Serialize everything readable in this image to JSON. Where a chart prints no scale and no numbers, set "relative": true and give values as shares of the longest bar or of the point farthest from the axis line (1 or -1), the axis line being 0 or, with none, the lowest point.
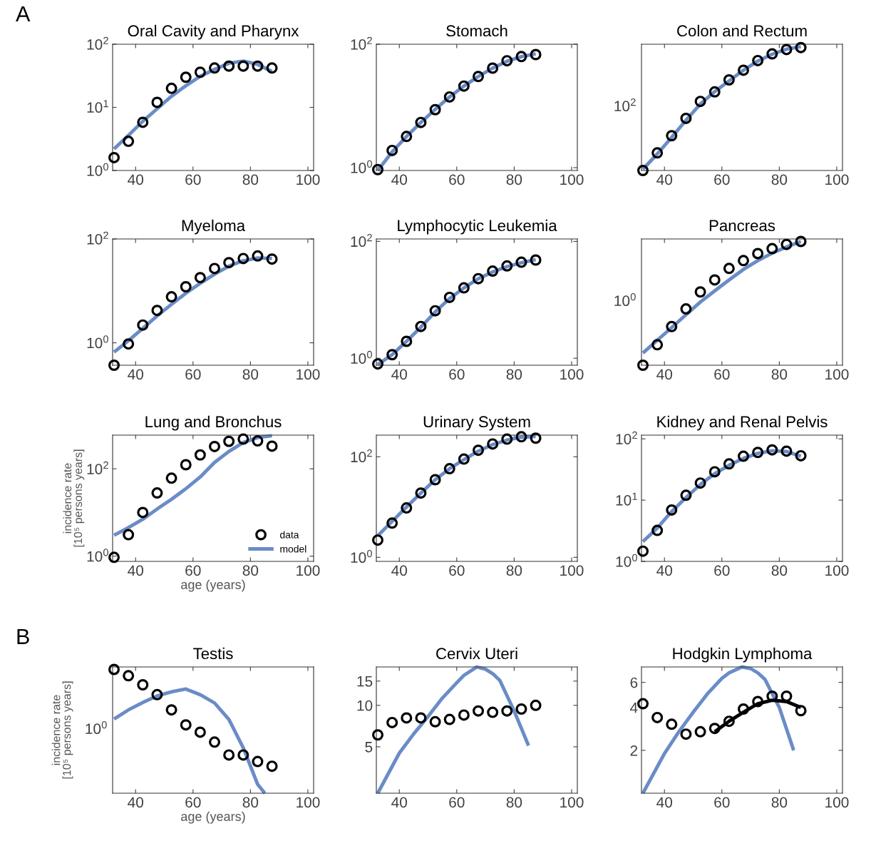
{
  "chart_data": [
    {
      "type": "scatter",
      "title": "Oral Cavity and Pharynx",
      "annotations": [
        "A"
      ],
      "x": [
        32.5,
        37.5,
        42.5,
        47.5,
        52.5,
        57.5,
        62.5,
        67.5,
        72.5,
        77.5,
        82.5,
        87.5
      ],
      "xlim": [
        32,
        102
      ],
      "xticks": [
        40,
        60,
        80,
        100
      ],
      "log": "y",
      "ylim": [
        1,
        100
      ],
      "yticks": [
        {
          "value": 1,
          "label": "10$^{0}$"
        },
        {
          "value": 10,
          "label": "10$^{1}$"
        },
        {
          "value": 100,
          "label": "10$^{2}$"
        }
      ],
      "series": [
        {
          "type": "line",
          "color": "#6a8cc7",
          "values": [
            2.2,
            3.6,
            6,
            9.5,
            15,
            22,
            31,
            40,
            50,
            54,
            48,
            37
          ]
        },
        {
          "type": "scatter",
          "marker": "circle",
          "color": "#000000",
          "values": [
            1.6,
            2.9,
            5.8,
            12,
            20,
            30,
            36,
            42,
            45,
            45,
            45,
            42
          ]
        }
      ]
    },
    {
      "type": "scatter",
      "title": "Stomach",
      "x": [
        32.5,
        37.5,
        42.5,
        47.5,
        52.5,
        57.5,
        62.5,
        67.5,
        72.5,
        77.5,
        82.5,
        87.5
      ],
      "xlim": [
        32,
        102
      ],
      "xticks": [
        40,
        60,
        80,
        100
      ],
      "log": "y",
      "ylim": [
        0.9,
        100
      ],
      "yticks": [
        {
          "value": 1,
          "label": "10$^{0}$"
        },
        {
          "value": 100,
          "label": "10$^{2}$"
        }
      ],
      "series": [
        {
          "type": "line",
          "color": "#6a8cc7",
          "values": [
            0.9,
            1.8,
            3.2,
            5.4,
            8.8,
            14,
            21,
            30,
            41,
            53,
            63,
            70
          ]
        },
        {
          "type": "scatter",
          "marker": "circle",
          "color": "#000000",
          "values": [
            0.93,
            1.9,
            3.2,
            5.4,
            8.7,
            14,
            21,
            30,
            41,
            54,
            63,
            68
          ]
        }
      ]
    },
    {
      "type": "scatter",
      "title": "Colon and Rectum",
      "relative": true,
      "annotations": [
        "10$^{2}$"
      ],
      "x": [
        32.5,
        37.5,
        42.5,
        47.5,
        52.5,
        57.5,
        62.5,
        67.5,
        72.5,
        77.5,
        82.5,
        87.5
      ],
      "xlim": [
        32,
        102
      ],
      "xticks": [
        40,
        60,
        80,
        100
      ],
      "series": [
        {
          "type": "line",
          "color": "#6a8cc7",
          "values": [
            0.01,
            0.134,
            0.267,
            0.406,
            0.537,
            0.637,
            0.724,
            0.81,
            0.884,
            0.939,
            0.98,
            1
          ]
        },
        {
          "type": "scatter",
          "marker": "circle",
          "color": "#000000",
          "values": [
            0,
            0.142,
            0.281,
            0.421,
            0.558,
            0.635,
            0.732,
            0.81,
            0.888,
            0.942,
            0.977,
            0.993
          ]
        }
      ]
    },
    {
      "type": "scatter",
      "title": "Myeloma",
      "x": [
        32.5,
        37.5,
        42.5,
        47.5,
        52.5,
        57.5,
        62.5,
        67.5,
        72.5,
        77.5,
        82.5,
        87.5
      ],
      "xlim": [
        32,
        102
      ],
      "xticks": [
        40,
        60,
        80,
        100
      ],
      "log": "y",
      "ylim": [
        0.37,
        100
      ],
      "yticks": [
        {
          "value": 1,
          "label": "10$^{0}$"
        },
        {
          "value": 100,
          "label": "10$^{2}$"
        }
      ],
      "series": [
        {
          "type": "line",
          "color": "#6a8cc7",
          "values": [
            0.66,
            1.1,
            1.9,
            3.3,
            5.5,
            9,
            14,
            21,
            30,
            38,
            43,
            42
          ]
        },
        {
          "type": "scatter",
          "marker": "circle",
          "color": "#000000",
          "values": [
            0.37,
            0.95,
            2.2,
            4.2,
            7.7,
            12,
            18,
            27,
            35,
            42,
            47,
            41
          ]
        }
      ]
    },
    {
      "type": "scatter",
      "title": "Lymphocytic Leukemia",
      "x": [
        32.5,
        37.5,
        42.5,
        47.5,
        52.5,
        57.5,
        62.5,
        67.5,
        72.5,
        77.5,
        82.5,
        87.5
      ],
      "xlim": [
        32,
        102
      ],
      "xticks": [
        40,
        60,
        80,
        100
      ],
      "log": "y",
      "ylim": [
        0.76,
        110
      ],
      "yticks": [
        {
          "value": 1,
          "label": "10$^{0}$"
        },
        {
          "value": 100,
          "label": "10$^{2}$"
        }
      ],
      "series": [
        {
          "type": "line",
          "color": "#6a8cc7",
          "values": [
            0.78,
            1.15,
            1.95,
            3.4,
            6.2,
            10.5,
            16,
            23,
            30,
            37,
            43,
            49
          ]
        },
        {
          "type": "scatter",
          "marker": "circle",
          "color": "#000000",
          "values": [
            0.8,
            1.15,
            1.95,
            3.5,
            6.5,
            11,
            16,
            23,
            31,
            38,
            44,
            48
          ]
        }
      ]
    },
    {
      "type": "scatter",
      "title": "Pancreas",
      "relative": true,
      "annotations": [
        "10$^{0}$"
      ],
      "x": [
        32.5,
        37.5,
        42.5,
        47.5,
        52.5,
        57.5,
        62.5,
        67.5,
        72.5,
        77.5,
        82.5,
        87.5
      ],
      "xlim": [
        32,
        102
      ],
      "xticks": [
        40,
        60,
        80,
        100
      ],
      "series": [
        {
          "type": "line",
          "color": "#6a8cc7",
          "values": [
            0.099,
            0.202,
            0.304,
            0.408,
            0.511,
            0.601,
            0.689,
            0.774,
            0.845,
            0.906,
            0.955,
            1
          ]
        },
        {
          "type": "scatter",
          "marker": "circle",
          "color": "#000000",
          "values": [
            0,
            0.165,
            0.312,
            0.455,
            0.592,
            0.689,
            0.782,
            0.845,
            0.902,
            0.942,
            0.976,
            1
          ]
        }
      ]
    },
    {
      "type": "scatter",
      "title": "Lung and Bronchus",
      "xlabel": "age (years)",
      "ylabel": "incidence rate\n[10⁵ persons years]",
      "x": [
        32.5,
        37.5,
        42.5,
        47.5,
        52.5,
        57.5,
        62.5,
        67.5,
        72.5,
        77.5,
        82.5,
        87.5
      ],
      "xlim": [
        32,
        102
      ],
      "xticks": [
        40,
        60,
        80,
        100
      ],
      "log": "y",
      "ylim": [
        0.76,
        590
      ],
      "yticks": [
        {
          "value": 1,
          "label": "10$^{0}$"
        },
        {
          "value": 100,
          "label": "10$^{2}$"
        }
      ],
      "legend": "bottom right",
      "series": [
        {
          "name": "model",
          "type": "line",
          "color": "#6a8cc7",
          "values": [
            3,
            4.5,
            7,
            12,
            20,
            35,
            65,
            140,
            250,
            400,
            520,
            570
          ]
        },
        {
          "name": "data",
          "type": "scatter",
          "marker": "circle",
          "color": "#000000",
          "values": [
            0.94,
            3.1,
            10,
            28,
            61,
            124,
            208,
            324,
            425,
            480,
            435,
            330
          ]
        }
      ]
    },
    {
      "type": "scatter",
      "title": "Urinary System",
      "x": [
        32.5,
        37.5,
        42.5,
        47.5,
        52.5,
        57.5,
        62.5,
        67.5,
        72.5,
        77.5,
        82.5,
        87.5
      ],
      "xlim": [
        32,
        102
      ],
      "xticks": [
        40,
        60,
        80,
        100
      ],
      "log": "y",
      "ylim": [
        0.83,
        270
      ],
      "yticks": [
        {
          "value": 1,
          "label": "10$^{0}$"
        },
        {
          "value": 100,
          "label": "10$^{2}$"
        }
      ],
      "series": [
        {
          "type": "line",
          "color": "#6a8cc7",
          "values": [
            2.7,
            5.2,
            10,
            19,
            35,
            58,
            88,
            130,
            175,
            215,
            245,
            255
          ]
        },
        {
          "type": "scatter",
          "marker": "circle",
          "color": "#000000",
          "values": [
            2.2,
            4.8,
            9.6,
            19,
            35,
            58,
            90,
            135,
            180,
            225,
            250,
            235
          ]
        }
      ]
    },
    {
      "type": "scatter",
      "title": "Kidney and Renal Pelvis",
      "x": [
        32.5,
        37.5,
        42.5,
        47.5,
        52.5,
        57.5,
        62.5,
        67.5,
        72.5,
        77.5,
        82.5,
        87.5
      ],
      "xlim": [
        32,
        102
      ],
      "xticks": [
        40,
        60,
        80,
        100
      ],
      "log": "y",
      "ylim": [
        1,
        115
      ],
      "yticks": [
        {
          "value": 1,
          "label": "10$^{0}$"
        },
        {
          "value": 10,
          "label": "10$^{1}$"
        },
        {
          "value": 100,
          "label": "10$^{2}$"
        }
      ],
      "series": [
        {
          "type": "line",
          "color": "#6a8cc7",
          "values": [
            2.1,
            3.5,
            6.5,
            11,
            18,
            27,
            37,
            48,
            58,
            64,
            62,
            52
          ]
        },
        {
          "type": "scatter",
          "marker": "circle",
          "color": "#000000",
          "values": [
            1.47,
            3.2,
            6.9,
            12,
            19,
            29,
            39,
            52,
            60,
            66,
            63,
            53
          ]
        }
      ]
    },
    {
      "type": "scatter",
      "title": "Testis",
      "relative": true,
      "annotations": [
        "B",
        "10$^{0}$"
      ],
      "xlabel": "age (years)",
      "ylabel": "incidence rate\n[10⁵ persons years]",
      "x": [
        32.5,
        37.5,
        42.5,
        47.5,
        52.5,
        57.5,
        62.5,
        67.5,
        72.5,
        77.5,
        82.5,
        87.5
      ],
      "xlim": [
        32,
        102
      ],
      "xticks": [
        40,
        60,
        80,
        100
      ],
      "series": [
        {
          "type": "line",
          "color": "#6a8cc7",
          "x": [
            32.5,
            37.5,
            42.5,
            47.5,
            52.5,
            57.5,
            62.5,
            67.5,
            72.5,
            77.5,
            82.5,
            85
          ],
          "values": [
            0.599,
            0.673,
            0.733,
            0.786,
            0.819,
            0.842,
            0.796,
            0.729,
            0.596,
            0.367,
            0.072,
            0
          ]
        },
        {
          "type": "scatter",
          "marker": "circle",
          "color": "#000000",
          "values": [
            1,
            0.949,
            0.876,
            0.796,
            0.673,
            0.552,
            0.493,
            0.413,
            0.309,
            0.309,
            0.256,
            0.218
          ]
        }
      ]
    },
    {
      "type": "scatter",
      "title": "Cervix Uteri",
      "x": [
        32.5,
        37.5,
        42.5,
        47.5,
        52.5,
        57.5,
        62.5,
        67.5,
        72.5,
        77.5,
        82.5,
        87.5
      ],
      "xlim": [
        32,
        102
      ],
      "xticks": [
        40,
        60,
        80,
        100
      ],
      "log": "y",
      "ylim": [
        2.3,
        19
      ],
      "yticks": [
        5,
        10,
        15
      ],
      "series": [
        {
          "type": "line",
          "color": "#6a8cc7",
          "x": [
            32.5,
            40,
            45,
            50,
            55,
            60,
            62.5,
            67,
            70,
            72.5,
            75,
            80,
            85
          ],
          "values": [
            2.3,
            4.5,
            6.2,
            8.3,
            11.3,
            14.6,
            16.5,
            19,
            18.3,
            17,
            15.2,
            9.1,
            5.1
          ]
        },
        {
          "type": "scatter",
          "marker": "circle",
          "color": "#000000",
          "values": [
            6.1,
            7.5,
            8.1,
            8.1,
            7.6,
            7.9,
            8.5,
            9.1,
            8.9,
            9.1,
            9.4,
            10
          ]
        }
      ]
    },
    {
      "type": "scatter",
      "title": "Hodgkin Lymphoma",
      "x": [
        32.5,
        37.5,
        42.5,
        47.5,
        52.5,
        57.5,
        62.5,
        67.5,
        72.5,
        77.5,
        82.5,
        87.5
      ],
      "xlim": [
        32,
        102
      ],
      "xticks": [
        40,
        60,
        80,
        100
      ],
      "log": "y",
      "ylim": [
        1,
        7.7
      ],
      "yticks": [
        2,
        4,
        6
      ],
      "series": [
        {
          "type": "line",
          "color": "#6a8cc7",
          "x": [
            32.5,
            40,
            45,
            50,
            55,
            60,
            62.5,
            67,
            70,
            72.5,
            75,
            80,
            85
          ],
          "values": [
            1,
            1.9,
            2.7,
            3.7,
            5,
            6.4,
            7,
            7.7,
            7.5,
            7,
            6.3,
            4,
            2
          ]
        },
        {
          "type": "line",
          "color": "#000000",
          "x": [
            57.5,
            62.5,
            67.5,
            72.5,
            77.5,
            82.5,
            87.5
          ],
          "values": [
            2.7,
            3.2,
            3.7,
            4.25,
            4.5,
            4.4,
            4
          ]
        },
        {
          "type": "scatter",
          "marker": "circle",
          "color": "#000000",
          "values": [
            4.25,
            3.4,
            3.05,
            2.6,
            2.7,
            2.85,
            3.2,
            3.9,
            4.4,
            4.8,
            4.8,
            3.8
          ]
        }
      ]
    }
  ]
}
